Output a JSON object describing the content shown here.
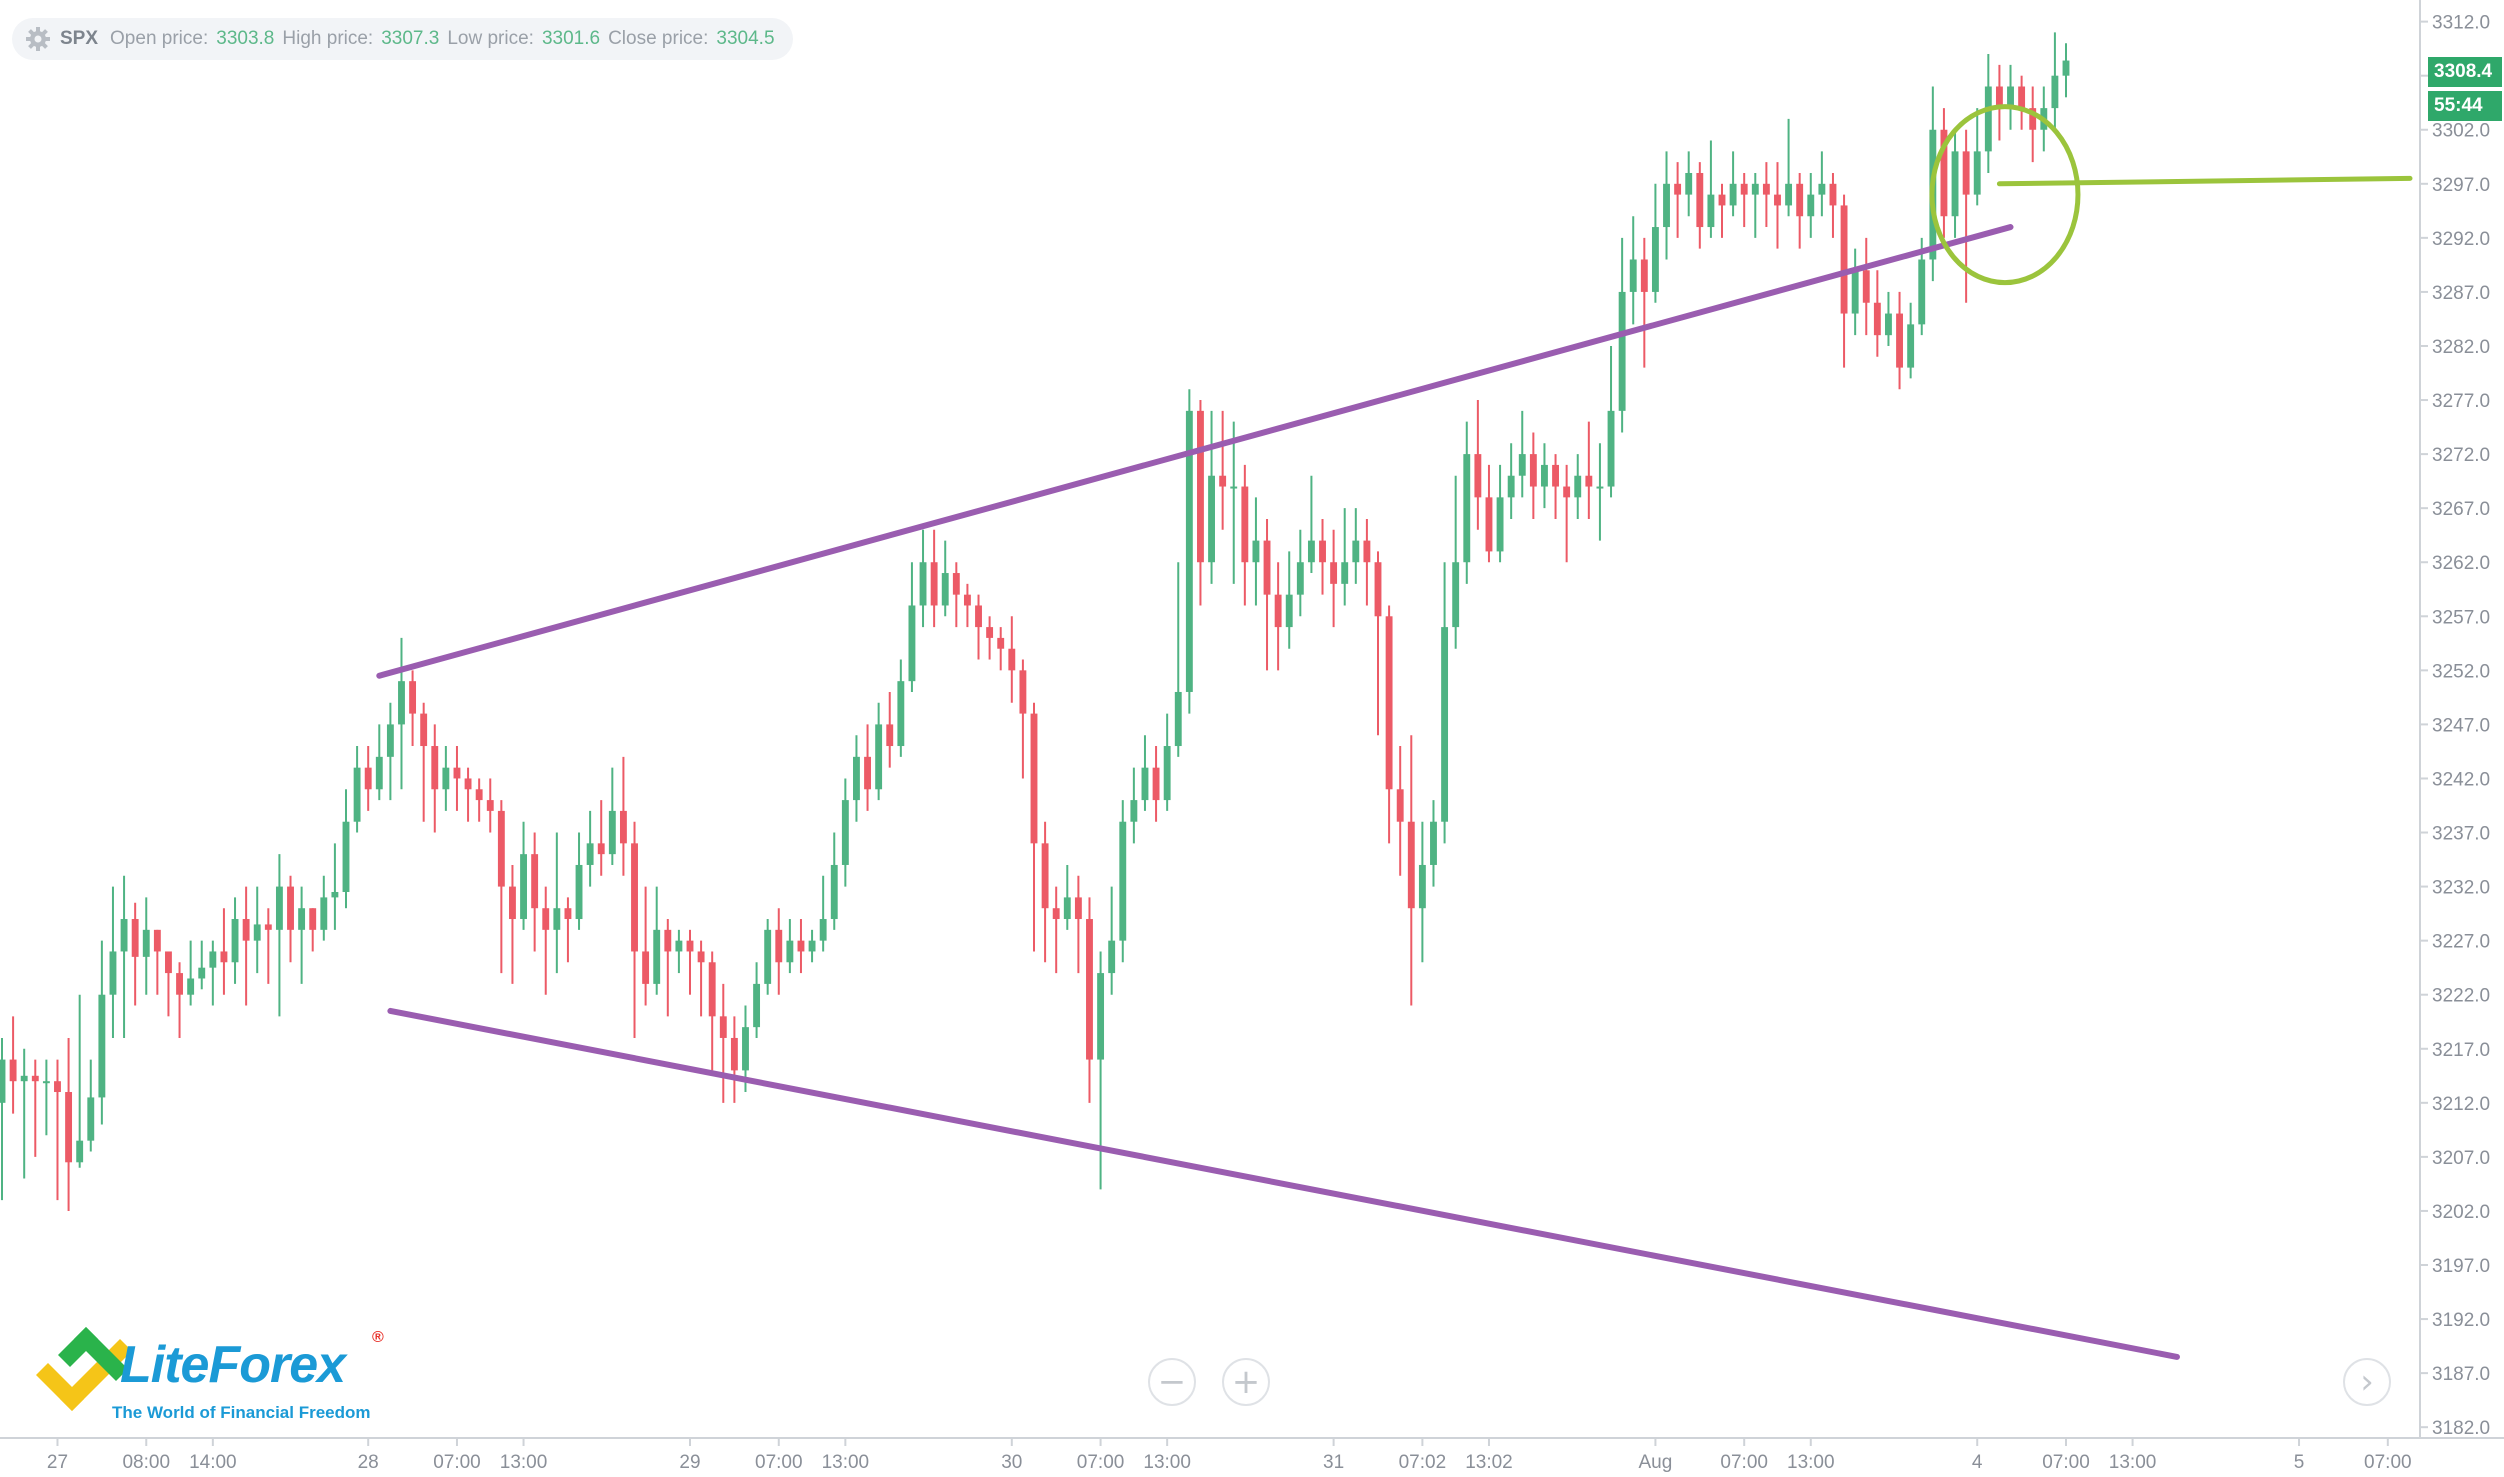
{
  "info_bar": {
    "symbol": "SPX",
    "open_label": "Open price:",
    "open_value": "3303.8",
    "high_label": "High price:",
    "high_value": "3307.3",
    "low_label": "Low price:",
    "low_value": "3301.6",
    "close_label": "Close price:",
    "close_value": "3304.5",
    "settings_icon": "gear-icon"
  },
  "price_badges": {
    "last_price": "3308.4",
    "countdown": "55:44"
  },
  "logo": {
    "name": "LiteForex",
    "registered": "®",
    "tagline": "The World of Financial Freedom"
  },
  "controls": {
    "zoom_out_icon": "minus-icon",
    "zoom_in_icon": "plus-icon",
    "scroll_right_icon": "chevron-right-icon",
    "zoom_out_glyph": "−",
    "zoom_in_glyph": "+",
    "scroll_right_glyph": "›"
  },
  "colors": {
    "up": "#4fb383",
    "down": "#ec5a66",
    "trendline": "#9a5db0",
    "breakout": "#9bc43c",
    "badge": "#2fa86a",
    "grid": "#e6e8eb"
  },
  "chart_data": {
    "type": "candlestick",
    "symbol": "SPX",
    "y_ticks": [
      3182,
      3187,
      3192,
      3197,
      3202,
      3207,
      3212,
      3217,
      3222,
      3227,
      3232,
      3237,
      3242,
      3247,
      3252,
      3257,
      3262,
      3267,
      3272,
      3277,
      3282,
      3287,
      3292,
      3297,
      3302,
      3307,
      3312
    ],
    "y_tick_labels": [
      "3182.0",
      "3187.0",
      "3192.0",
      "3197.0",
      "3202.0",
      "3207.0",
      "3212.0",
      "3217.0",
      "3222.0",
      "3227.0",
      "3232.0",
      "3237.0",
      "3242.0",
      "3247.0",
      "3252.0",
      "3257.0",
      "3262.0",
      "3267.0",
      "3272.0",
      "3277.0",
      "3282.0",
      "3287.0",
      "3292.0",
      "3297.0",
      "3302.0",
      "3307.0",
      "3312.0"
    ],
    "x_tick_labels": [
      {
        "label": "27",
        "i": 5
      },
      {
        "label": "08:00",
        "i": 13
      },
      {
        "label": "14:00",
        "i": 19
      },
      {
        "label": "28",
        "i": 33
      },
      {
        "label": "07:00",
        "i": 41
      },
      {
        "label": "13:00",
        "i": 47
      },
      {
        "label": "29",
        "i": 62
      },
      {
        "label": "07:00",
        "i": 70
      },
      {
        "label": "13:00",
        "i": 76
      },
      {
        "label": "30",
        "i": 91
      },
      {
        "label": "07:00",
        "i": 99
      },
      {
        "label": "13:00",
        "i": 105
      },
      {
        "label": "31",
        "i": 120
      },
      {
        "label": "07:02",
        "i": 128
      },
      {
        "label": "13:02",
        "i": 134
      },
      {
        "label": "Aug",
        "i": 149
      },
      {
        "label": "07:00",
        "i": 157
      },
      {
        "label": "13:00",
        "i": 163
      },
      {
        "label": "4",
        "i": 178
      },
      {
        "label": "07:00",
        "i": 186
      },
      {
        "label": "13:00",
        "i": 192
      },
      {
        "label": "5",
        "i": 207
      },
      {
        "label": "07:00",
        "i": 215
      }
    ],
    "x_range": [
      0,
      217
    ],
    "y_range": [
      3181,
      3314
    ],
    "candles": [
      [
        3212.0,
        3216.0,
        3203.0,
        3218.0
      ],
      [
        3216.0,
        3214.0,
        3211.0,
        3220.0
      ],
      [
        3214.0,
        3214.5,
        3205.0,
        3217.0
      ],
      [
        3214.5,
        3214.0,
        3207.0,
        3216.0
      ],
      [
        3214.0,
        3214.0,
        3209.0,
        3216.0
      ],
      [
        3214.0,
        3213.0,
        3203.0,
        3216.0
      ],
      [
        3213.0,
        3206.5,
        3202.0,
        3218.0
      ],
      [
        3206.5,
        3208.5,
        3206.0,
        3222.0
      ],
      [
        3208.5,
        3212.5,
        3207.5,
        3216.0
      ],
      [
        3212.5,
        3222.0,
        3210.0,
        3227.0
      ],
      [
        3222.0,
        3226.0,
        3218.0,
        3232.0
      ],
      [
        3226.0,
        3229.0,
        3218.0,
        3233.0
      ],
      [
        3229.0,
        3225.5,
        3221.0,
        3230.5
      ],
      [
        3225.5,
        3228.0,
        3222.0,
        3231.0
      ],
      [
        3228.0,
        3226.0,
        3222.0,
        3228.0
      ],
      [
        3226.0,
        3224.0,
        3220.0,
        3225.0
      ],
      [
        3224.0,
        3222.0,
        3218.0,
        3225.0
      ],
      [
        3222.0,
        3223.5,
        3221.0,
        3227.0
      ],
      [
        3223.5,
        3224.5,
        3222.5,
        3227.0
      ],
      [
        3224.5,
        3226.0,
        3221.0,
        3227.0
      ],
      [
        3226.0,
        3225.0,
        3222.0,
        3230.0
      ],
      [
        3225.0,
        3229.0,
        3223.0,
        3231.0
      ],
      [
        3229.0,
        3227.0,
        3221.0,
        3232.0
      ],
      [
        3227.0,
        3228.5,
        3224.0,
        3232.0
      ],
      [
        3228.5,
        3228.0,
        3223.0,
        3230.0
      ],
      [
        3228.0,
        3232.0,
        3220.0,
        3235.0
      ],
      [
        3232.0,
        3228.0,
        3225.0,
        3233.0
      ],
      [
        3228.0,
        3230.0,
        3223.0,
        3232.0
      ],
      [
        3230.0,
        3228.0,
        3226.0,
        3230.0
      ],
      [
        3228.0,
        3231.0,
        3227.0,
        3233.0
      ],
      [
        3231.0,
        3231.5,
        3228.0,
        3236.0
      ],
      [
        3231.5,
        3238.0,
        3230.0,
        3241.0
      ],
      [
        3238.0,
        3243.0,
        3237.0,
        3245.0
      ],
      [
        3243.0,
        3241.0,
        3239.0,
        3245.0
      ],
      [
        3241.0,
        3244.0,
        3240.0,
        3247.0
      ],
      [
        3244.0,
        3247.0,
        3240.0,
        3249.0
      ],
      [
        3247.0,
        3251.0,
        3241.0,
        3255.0
      ],
      [
        3251.0,
        3248.0,
        3245.0,
        3252.0
      ],
      [
        3248.0,
        3245.0,
        3238.0,
        3249.0
      ],
      [
        3245.0,
        3241.0,
        3237.0,
        3247.0
      ],
      [
        3241.0,
        3243.0,
        3239.0,
        3245.0
      ],
      [
        3243.0,
        3242.0,
        3239.0,
        3245.0
      ],
      [
        3242.0,
        3241.0,
        3238.0,
        3243.0
      ],
      [
        3241.0,
        3240.0,
        3238.0,
        3242.0
      ],
      [
        3240.0,
        3239.0,
        3237.0,
        3242.0
      ],
      [
        3239.0,
        3232.0,
        3224.0,
        3240.0
      ],
      [
        3232.0,
        3229.0,
        3223.0,
        3234.0
      ],
      [
        3229.0,
        3235.0,
        3228.0,
        3238.0
      ],
      [
        3235.0,
        3230.0,
        3226.0,
        3237.0
      ],
      [
        3230.0,
        3228.0,
        3222.0,
        3232.0
      ],
      [
        3228.0,
        3230.0,
        3224.0,
        3237.0
      ],
      [
        3230.0,
        3229.0,
        3225.0,
        3231.0
      ],
      [
        3229.0,
        3234.0,
        3228.0,
        3237.0
      ],
      [
        3234.0,
        3236.0,
        3232.0,
        3239.0
      ],
      [
        3236.0,
        3235.0,
        3233.0,
        3240.0
      ],
      [
        3235.0,
        3239.0,
        3234.0,
        3243.0
      ],
      [
        3239.0,
        3236.0,
        3233.0,
        3244.0
      ],
      [
        3236.0,
        3226.0,
        3218.0,
        3238.0
      ],
      [
        3226.0,
        3223.0,
        3221.0,
        3232.0
      ],
      [
        3223.0,
        3228.0,
        3222.0,
        3232.0
      ],
      [
        3228.0,
        3226.0,
        3220.0,
        3229.0
      ],
      [
        3226.0,
        3227.0,
        3224.0,
        3228.0
      ],
      [
        3227.0,
        3226.0,
        3222.0,
        3228.0
      ],
      [
        3226.0,
        3225.0,
        3220.0,
        3227.0
      ],
      [
        3225.0,
        3220.0,
        3215.0,
        3226.0
      ],
      [
        3220.0,
        3218.0,
        3212.0,
        3223.0
      ],
      [
        3218.0,
        3215.0,
        3212.0,
        3220.0
      ],
      [
        3215.0,
        3219.0,
        3213.0,
        3221.0
      ],
      [
        3219.0,
        3223.0,
        3218.0,
        3225.0
      ],
      [
        3223.0,
        3228.0,
        3222.0,
        3229.0
      ],
      [
        3228.0,
        3225.0,
        3222.0,
        3230.0
      ],
      [
        3225.0,
        3227.0,
        3224.0,
        3229.0
      ],
      [
        3227.0,
        3226.0,
        3224.0,
        3229.0
      ],
      [
        3226.0,
        3227.0,
        3225.0,
        3228.0
      ],
      [
        3227.0,
        3229.0,
        3226.0,
        3233.0
      ],
      [
        3229.0,
        3234.0,
        3228.0,
        3237.0
      ],
      [
        3234.0,
        3240.0,
        3232.0,
        3242.0
      ],
      [
        3240.0,
        3244.0,
        3238.0,
        3246.0
      ],
      [
        3244.0,
        3241.0,
        3239.0,
        3247.0
      ],
      [
        3241.0,
        3247.0,
        3240.0,
        3249.0
      ],
      [
        3247.0,
        3245.0,
        3243.0,
        3250.0
      ],
      [
        3245.0,
        3251.0,
        3244.0,
        3253.0
      ],
      [
        3251.0,
        3258.0,
        3250.0,
        3262.0
      ],
      [
        3258.0,
        3262.0,
        3256.0,
        3265.0
      ],
      [
        3262.0,
        3258.0,
        3256.0,
        3265.0
      ],
      [
        3258.0,
        3261.0,
        3257.0,
        3264.0
      ],
      [
        3261.0,
        3259.0,
        3256.0,
        3262.0
      ],
      [
        3259.0,
        3258.0,
        3256.0,
        3260.0
      ],
      [
        3258.0,
        3256.0,
        3253.0,
        3259.0
      ],
      [
        3256.0,
        3255.0,
        3253.0,
        3257.0
      ],
      [
        3255.0,
        3254.0,
        3252.0,
        3256.0
      ],
      [
        3254.0,
        3252.0,
        3249.0,
        3257.0
      ],
      [
        3252.0,
        3248.0,
        3242.0,
        3253.0
      ],
      [
        3248.0,
        3236.0,
        3226.0,
        3249.0
      ],
      [
        3236.0,
        3230.0,
        3225.0,
        3238.0
      ],
      [
        3230.0,
        3229.0,
        3224.0,
        3232.0
      ],
      [
        3229.0,
        3231.0,
        3228.0,
        3234.0
      ],
      [
        3231.0,
        3229.0,
        3224.0,
        3233.0
      ],
      [
        3229.0,
        3216.0,
        3212.0,
        3231.0
      ],
      [
        3216.0,
        3224.0,
        3204.0,
        3226.0
      ],
      [
        3224.0,
        3227.0,
        3222.0,
        3232.0
      ],
      [
        3227.0,
        3238.0,
        3225.0,
        3240.0
      ],
      [
        3238.0,
        3240.0,
        3236.0,
        3243.0
      ],
      [
        3240.0,
        3243.0,
        3239.0,
        3246.0
      ],
      [
        3243.0,
        3240.0,
        3238.0,
        3245.0
      ],
      [
        3240.0,
        3245.0,
        3239.0,
        3248.0
      ],
      [
        3245.0,
        3250.0,
        3244.0,
        3262.0
      ],
      [
        3250.0,
        3276.0,
        3248.0,
        3278.0
      ],
      [
        3276.0,
        3262.0,
        3258.0,
        3277.0
      ],
      [
        3262.0,
        3270.0,
        3260.0,
        3276.0
      ],
      [
        3270.0,
        3269.0,
        3265.0,
        3276.0
      ],
      [
        3269.0,
        3269.0,
        3260.0,
        3275.0
      ],
      [
        3269.0,
        3262.0,
        3258.0,
        3271.0
      ],
      [
        3262.0,
        3264.0,
        3258.0,
        3268.0
      ],
      [
        3264.0,
        3259.0,
        3252.0,
        3266.0
      ],
      [
        3259.0,
        3256.0,
        3252.0,
        3262.0
      ],
      [
        3256.0,
        3259.0,
        3254.0,
        3263.0
      ],
      [
        3259.0,
        3262.0,
        3257.0,
        3265.0
      ],
      [
        3262.0,
        3264.0,
        3261.0,
        3270.0
      ],
      [
        3264.0,
        3262.0,
        3259.0,
        3266.0
      ],
      [
        3262.0,
        3260.0,
        3256.0,
        3265.0
      ],
      [
        3260.0,
        3262.0,
        3258.0,
        3267.0
      ],
      [
        3262.0,
        3264.0,
        3260.0,
        3267.0
      ],
      [
        3264.0,
        3262.0,
        3258.0,
        3266.0
      ],
      [
        3262.0,
        3257.0,
        3246.0,
        3263.0
      ],
      [
        3257.0,
        3241.0,
        3236.0,
        3258.0
      ],
      [
        3241.0,
        3238.0,
        3233.0,
        3245.0
      ],
      [
        3238.0,
        3230.0,
        3221.0,
        3246.0
      ],
      [
        3230.0,
        3234.0,
        3225.0,
        3238.0
      ],
      [
        3234.0,
        3238.0,
        3232.0,
        3240.0
      ],
      [
        3238.0,
        3256.0,
        3236.0,
        3262.0
      ],
      [
        3256.0,
        3262.0,
        3254.0,
        3270.0
      ],
      [
        3262.0,
        3272.0,
        3260.0,
        3275.0
      ],
      [
        3272.0,
        3268.0,
        3265.0,
        3277.0
      ],
      [
        3268.0,
        3263.0,
        3262.0,
        3271.0
      ],
      [
        3263.0,
        3268.0,
        3262.0,
        3271.0
      ],
      [
        3268.0,
        3270.0,
        3266.0,
        3273.0
      ],
      [
        3270.0,
        3272.0,
        3268.0,
        3276.0
      ],
      [
        3272.0,
        3269.0,
        3266.0,
        3274.0
      ],
      [
        3269.0,
        3271.0,
        3267.0,
        3273.0
      ],
      [
        3271.0,
        3269.0,
        3266.0,
        3272.0
      ],
      [
        3269.0,
        3268.0,
        3262.0,
        3271.0
      ],
      [
        3268.0,
        3270.0,
        3266.0,
        3272.0
      ],
      [
        3270.0,
        3269.0,
        3266.0,
        3275.0
      ],
      [
        3269.0,
        3269.0,
        3264.0,
        3273.0
      ],
      [
        3269.0,
        3276.0,
        3268.0,
        3282.0
      ],
      [
        3276.0,
        3287.0,
        3274.0,
        3292.0
      ],
      [
        3287.0,
        3290.0,
        3284.0,
        3294.0
      ],
      [
        3290.0,
        3287.0,
        3280.0,
        3292.0
      ],
      [
        3287.0,
        3293.0,
        3286.0,
        3297.0
      ],
      [
        3293.0,
        3297.0,
        3290.0,
        3300.0
      ],
      [
        3297.0,
        3296.0,
        3292.0,
        3299.0
      ],
      [
        3296.0,
        3298.0,
        3294.0,
        3300.0
      ],
      [
        3298.0,
        3293.0,
        3291.0,
        3299.0
      ],
      [
        3293.0,
        3296.0,
        3292.0,
        3301.0
      ],
      [
        3296.0,
        3295.0,
        3292.0,
        3297.0
      ],
      [
        3295.0,
        3297.0,
        3294.0,
        3300.0
      ],
      [
        3297.0,
        3296.0,
        3293.0,
        3298.0
      ],
      [
        3296.0,
        3297.0,
        3292.0,
        3298.0
      ],
      [
        3297.0,
        3296.0,
        3293.0,
        3299.0
      ],
      [
        3296.0,
        3295.0,
        3291.0,
        3299.0
      ],
      [
        3295.0,
        3297.0,
        3294.0,
        3303.0
      ],
      [
        3297.0,
        3294.0,
        3291.0,
        3298.0
      ],
      [
        3294.0,
        3296.0,
        3292.0,
        3298.0
      ],
      [
        3296.0,
        3297.0,
        3294.0,
        3300.0
      ],
      [
        3297.0,
        3295.0,
        3292.0,
        3298.0
      ],
      [
        3295.0,
        3285.0,
        3280.0,
        3296.0
      ],
      [
        3285.0,
        3289.0,
        3283.0,
        3291.0
      ],
      [
        3289.0,
        3286.0,
        3283.0,
        3292.0
      ],
      [
        3286.0,
        3283.0,
        3281.0,
        3289.0
      ],
      [
        3283.0,
        3285.0,
        3282.0,
        3287.0
      ],
      [
        3285.0,
        3280.0,
        3278.0,
        3287.0
      ],
      [
        3280.0,
        3284.0,
        3279.0,
        3286.0
      ],
      [
        3284.0,
        3290.0,
        3283.0,
        3292.0
      ],
      [
        3290.0,
        3302.0,
        3288.0,
        3306.0
      ],
      [
        3302.0,
        3294.0,
        3292.0,
        3304.0
      ],
      [
        3294.0,
        3300.0,
        3292.0,
        3302.0
      ],
      [
        3300.0,
        3296.0,
        3286.0,
        3302.0
      ],
      [
        3296.0,
        3300.0,
        3295.0,
        3304.0
      ],
      [
        3300.0,
        3306.0,
        3298.0,
        3309.0
      ],
      [
        3306.0,
        3304.0,
        3301.0,
        3308.0
      ],
      [
        3304.0,
        3306.0,
        3302.0,
        3308.0
      ],
      [
        3306.0,
        3304.0,
        3302.0,
        3307.0
      ],
      [
        3304.0,
        3302.0,
        3299.0,
        3306.0
      ],
      [
        3302.0,
        3304.0,
        3300.0,
        3306.0
      ],
      [
        3304.0,
        3307.0,
        3302.0,
        3311.0
      ],
      [
        3307.0,
        3308.4,
        3305.0,
        3310.0
      ]
    ],
    "trendlines": [
      {
        "name": "upper",
        "color": "#9a5db0",
        "points": [
          [
            34,
            3251.5
          ],
          [
            181,
            3293.0
          ]
        ]
      },
      {
        "name": "lower",
        "color": "#9a5db0",
        "points": [
          [
            35,
            3220.5
          ],
          [
            196,
            3188.5
          ]
        ]
      },
      {
        "name": "breakout-level",
        "color": "#9bc43c",
        "points": [
          [
            180,
            3297.0
          ],
          [
            217,
            3297.5
          ]
        ]
      }
    ],
    "highlight_circle": {
      "center": [
        180.5,
        3296.0
      ],
      "color": "#9bc43c"
    }
  }
}
